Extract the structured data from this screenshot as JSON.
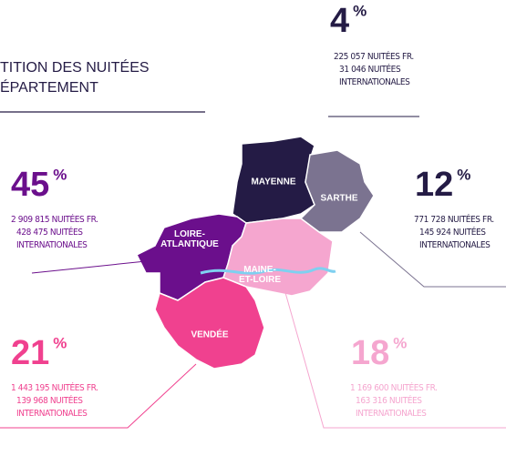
{
  "title": [
    "TITION DES NUITÉES",
    "ÉPARTEMENT"
  ],
  "unit": "%",
  "regions": [
    {
      "map_label": [
        "MAYENNE"
      ],
      "percent": 4,
      "lines": [
        "225 057 NUITÉES FR.",
        "31 046  NUITÉES",
        "INTERNATIONALES"
      ],
      "color": "#241b45",
      "text_color": "#241b45"
    },
    {
      "map_label": [
        "SARTHE"
      ],
      "percent": 12,
      "lines": [
        "771 728 NUITÉES FR.",
        "145 924 NUITÉES",
        "INTERNATIONALES"
      ],
      "color": "#7b7390",
      "text_color": "#241b45"
    },
    {
      "map_label": [
        "LOIRE-",
        "ATLANTIQUE"
      ],
      "percent": 45,
      "lines": [
        "2 909 815 NUITÉES FR.",
        "428 475  NUITÉES",
        "INTERNATIONALES"
      ],
      "color": "#6b0f8c",
      "text_color": "#6b0f8c"
    },
    {
      "map_label": [
        "MAINE-",
        "ET-LOIRE"
      ],
      "percent": 18,
      "lines": [
        "1 169 600 NUITÉES FR.",
        "163 316 NUITÉES",
        "INTERNATIONALES"
      ],
      "color": "#f5a6cf",
      "text_color": "#f5a6cf"
    },
    {
      "map_label": [
        "VENDÉE"
      ],
      "percent": 21,
      "lines": [
        "1 443 195 NUITÉES FR.",
        "139 968 NUITÉES",
        "INTERNATIONALES"
      ],
      "color": "#f0418f",
      "text_color": "#f0418f"
    }
  ]
}
